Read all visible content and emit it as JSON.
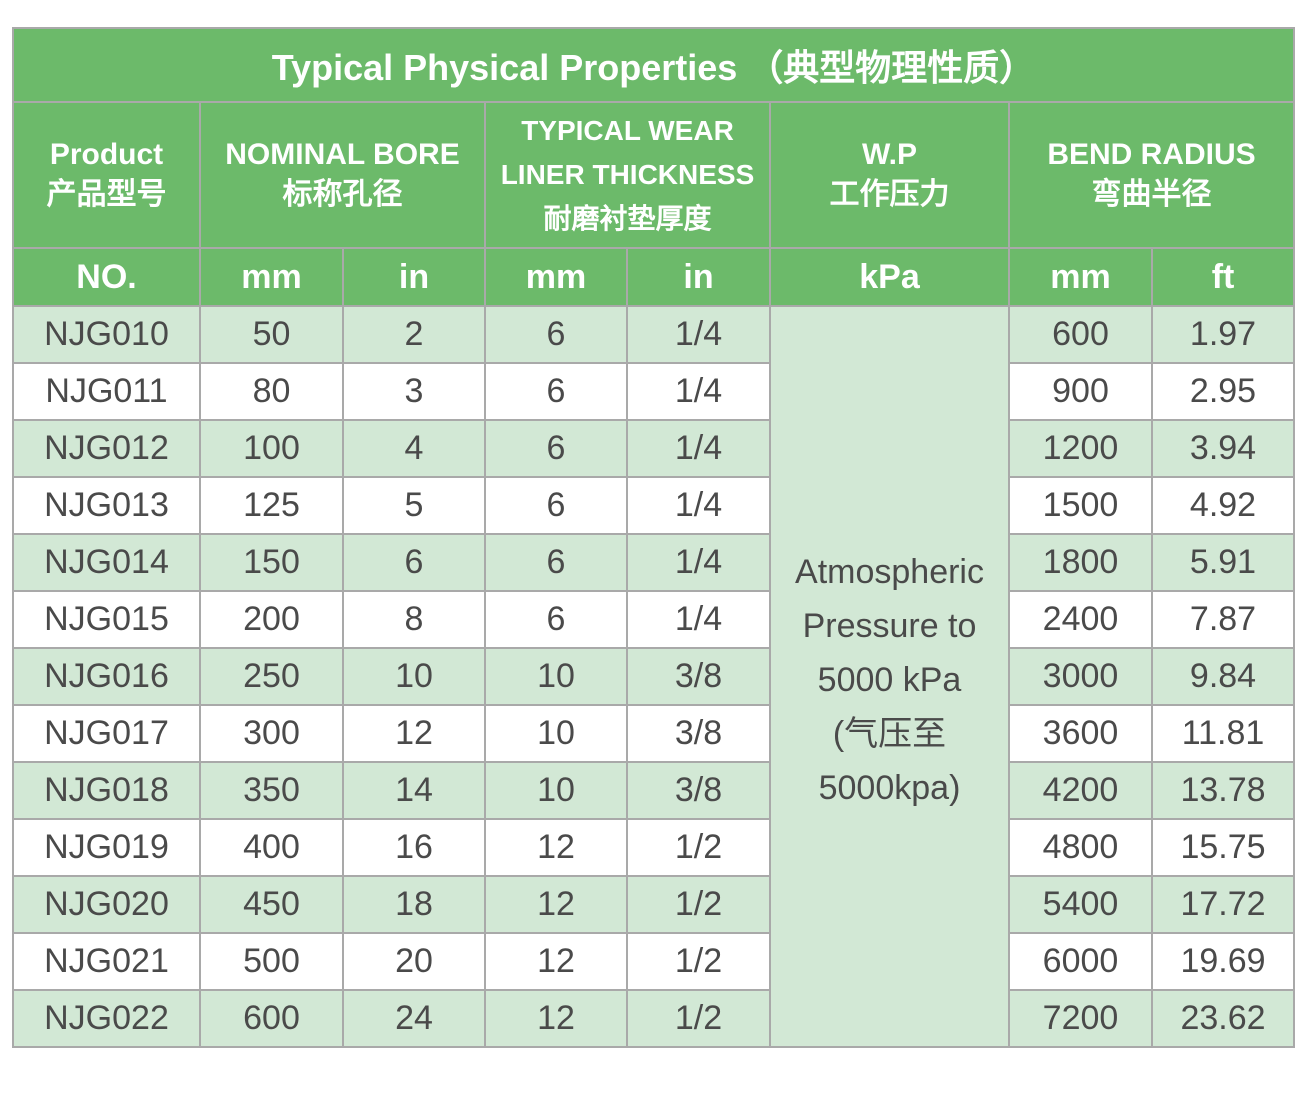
{
  "title": "Typical Physical Properties （典型物理性质）",
  "headers": {
    "product": {
      "en": "Product",
      "zh": "产品型号"
    },
    "bore": {
      "en": "NOMINAL BORE",
      "zh": "标称孔径"
    },
    "liner": {
      "en1": "TYPICAL WEAR",
      "en2": "LINER THICKNESS",
      "zh": "耐磨衬垫厚度"
    },
    "wp": {
      "en": "W.P",
      "zh": "工作压力"
    },
    "bend": {
      "en": "BEND RADIUS",
      "zh": "弯曲半径"
    }
  },
  "units": [
    "NO.",
    "mm",
    "in",
    "mm",
    "in",
    "kPa",
    "mm",
    "ft"
  ],
  "wp_value": [
    "Atmospheric",
    "Pressure to",
    "5000 kPa",
    "(气压至",
    "5000kpa)"
  ],
  "rows": [
    {
      "no": "NJG010",
      "bore_mm": "50",
      "bore_in": "2",
      "liner_mm": "6",
      "liner_in": "1/4",
      "bend_mm": "600",
      "bend_ft": "1.97"
    },
    {
      "no": "NJG011",
      "bore_mm": "80",
      "bore_in": "3",
      "liner_mm": "6",
      "liner_in": "1/4",
      "bend_mm": "900",
      "bend_ft": "2.95"
    },
    {
      "no": "NJG012",
      "bore_mm": "100",
      "bore_in": "4",
      "liner_mm": "6",
      "liner_in": "1/4",
      "bend_mm": "1200",
      "bend_ft": "3.94"
    },
    {
      "no": "NJG013",
      "bore_mm": "125",
      "bore_in": "5",
      "liner_mm": "6",
      "liner_in": "1/4",
      "bend_mm": "1500",
      "bend_ft": "4.92"
    },
    {
      "no": "NJG014",
      "bore_mm": "150",
      "bore_in": "6",
      "liner_mm": "6",
      "liner_in": "1/4",
      "bend_mm": "1800",
      "bend_ft": "5.91"
    },
    {
      "no": "NJG015",
      "bore_mm": "200",
      "bore_in": "8",
      "liner_mm": "6",
      "liner_in": "1/4",
      "bend_mm": "2400",
      "bend_ft": "7.87"
    },
    {
      "no": "NJG016",
      "bore_mm": "250",
      "bore_in": "10",
      "liner_mm": "10",
      "liner_in": "3/8",
      "bend_mm": "3000",
      "bend_ft": "9.84"
    },
    {
      "no": "NJG017",
      "bore_mm": "300",
      "bore_in": "12",
      "liner_mm": "10",
      "liner_in": "3/8",
      "bend_mm": "3600",
      "bend_ft": "11.81"
    },
    {
      "no": "NJG018",
      "bore_mm": "350",
      "bore_in": "14",
      "liner_mm": "10",
      "liner_in": "3/8",
      "bend_mm": "4200",
      "bend_ft": "13.78"
    },
    {
      "no": "NJG019",
      "bore_mm": "400",
      "bore_in": "16",
      "liner_mm": "12",
      "liner_in": "1/2",
      "bend_mm": "4800",
      "bend_ft": "15.75"
    },
    {
      "no": "NJG020",
      "bore_mm": "450",
      "bore_in": "18",
      "liner_mm": "12",
      "liner_in": "1/2",
      "bend_mm": "5400",
      "bend_ft": "17.72"
    },
    {
      "no": "NJG021",
      "bore_mm": "500",
      "bore_in": "20",
      "liner_mm": "12",
      "liner_in": "1/2",
      "bend_mm": "6000",
      "bend_ft": "19.69"
    },
    {
      "no": "NJG022",
      "bore_mm": "600",
      "bore_in": "24",
      "liner_mm": "12",
      "liner_in": "1/2",
      "bend_mm": "7200",
      "bend_ft": "23.62"
    }
  ],
  "colors": {
    "header_green": "#6cba6a",
    "row_shade": "#d2e8d5",
    "row_plain": "#ffffff",
    "grid": "#a9a9a9"
  }
}
